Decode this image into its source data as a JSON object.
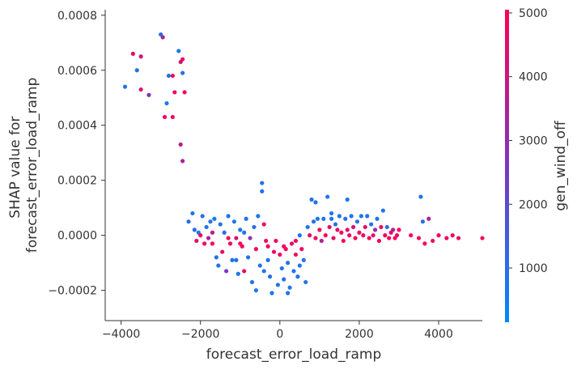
{
  "chart_data": {
    "type": "scatter",
    "title": "",
    "xlabel": "forecast_error_load_ramp",
    "ylabel_lines": [
      "SHAP value for",
      "forecast_error_load_ramp"
    ],
    "xlim": [
      -4400,
      5100
    ],
    "ylim": [
      -0.00031,
      0.00082
    ],
    "x_ticks": [
      -4000,
      -2000,
      0,
      2000,
      4000
    ],
    "x_tick_labels": [
      "−4000",
      "−2000",
      "0",
      "2000",
      "4000"
    ],
    "y_ticks": [
      -0.0002,
      0.0,
      0.0002,
      0.0004,
      0.0006,
      0.0008
    ],
    "y_tick_labels": [
      "−0.0002",
      "0.0000",
      "0.0002",
      "0.0004",
      "0.0006",
      "0.0008"
    ],
    "colorbar": {
      "label": "gen_wind_off",
      "range": [
        150,
        5050
      ],
      "ticks": [
        1000,
        2000,
        3000,
        4000,
        5000
      ],
      "tick_labels": [
        "1000",
        "2000",
        "3000",
        "4000",
        "5000"
      ],
      "colors": [
        "#008afb",
        "#7c36c0",
        "#ff0052"
      ]
    },
    "grid": false,
    "legend": "none",
    "points": [
      [
        -3900,
        0.00054,
        800
      ],
      [
        -3700,
        0.00066,
        4500
      ],
      [
        -3600,
        0.0006,
        900
      ],
      [
        -3500,
        0.00065,
        4200
      ],
      [
        -3500,
        0.00053,
        4400
      ],
      [
        -3300,
        0.00051,
        2800
      ],
      [
        -3000,
        0.00073,
        1000
      ],
      [
        -2950,
        0.00072,
        3500
      ],
      [
        -2850,
        0.00048,
        700
      ],
      [
        -2800,
        0.00058,
        900
      ],
      [
        -2700,
        0.00058,
        4700
      ],
      [
        -2650,
        0.00052,
        4600
      ],
      [
        -2550,
        0.00067,
        700
      ],
      [
        -2500,
        0.00063,
        4000
      ],
      [
        -2450,
        0.00059,
        900
      ],
      [
        -2450,
        0.00064,
        4700
      ],
      [
        -2400,
        0.00052,
        4800
      ],
      [
        -2900,
        0.00043,
        4900
      ],
      [
        -2700,
        0.00043,
        4600
      ],
      [
        -2500,
        0.00033,
        3800
      ],
      [
        -2450,
        0.00027,
        3500
      ],
      [
        -2200,
        8e-05,
        800
      ],
      [
        -2150,
        2e-05,
        900
      ],
      [
        -2100,
        -2e-05,
        4500
      ],
      [
        -2050,
        1e-05,
        700
      ],
      [
        -1950,
        7e-05,
        800
      ],
      [
        -1900,
        -3e-05,
        4700
      ],
      [
        -1850,
        3e-05,
        700
      ],
      [
        -1800,
        -1e-05,
        3500
      ],
      [
        -1750,
        5e-05,
        800
      ],
      [
        -1700,
        -3e-05,
        4900
      ],
      [
        -1650,
        6e-05,
        700
      ],
      [
        -1600,
        -8e-05,
        800
      ],
      [
        -1550,
        -0.00011,
        900
      ],
      [
        -1500,
        4e-05,
        800
      ],
      [
        -1450,
        -6e-05,
        4600
      ],
      [
        -1400,
        1e-05,
        900
      ],
      [
        -1350,
        -0.00013,
        2500
      ],
      [
        -1300,
        7e-05,
        800
      ],
      [
        -1250,
        -3e-05,
        4900
      ],
      [
        -1200,
        -9e-05,
        800
      ],
      [
        -1150,
        5e-05,
        700
      ],
      [
        -1100,
        -1e-05,
        4400
      ],
      [
        -1050,
        -0.00014,
        800
      ],
      [
        -1000,
        2e-05,
        700
      ],
      [
        -950,
        -4e-05,
        4900
      ],
      [
        -900,
        -0.00013,
        4700
      ],
      [
        -850,
        6e-05,
        800
      ],
      [
        -800,
        -8e-05,
        900
      ],
      [
        -750,
        -1e-05,
        2800
      ],
      [
        -700,
        -0.00017,
        800
      ],
      [
        -650,
        3e-05,
        900
      ],
      [
        -600,
        -5e-05,
        4800
      ],
      [
        -550,
        7e-05,
        700
      ],
      [
        -500,
        -0.00011,
        800
      ],
      [
        -450,
        0.00019,
        800
      ],
      [
        -450,
        0.00016,
        900
      ],
      [
        -400,
        4e-05,
        4700
      ],
      [
        -350,
        -2e-05,
        4900
      ],
      [
        -300,
        -9e-05,
        800
      ],
      [
        -250,
        -0.00015,
        900
      ],
      [
        -200,
        -0.00021,
        700
      ],
      [
        -150,
        -6e-05,
        4800
      ],
      [
        -100,
        -2e-05,
        4900
      ],
      [
        -50,
        -0.00018,
        800
      ],
      [
        0,
        -7e-05,
        4700
      ],
      [
        50,
        -0.00012,
        800
      ],
      [
        100,
        -0.00016,
        900
      ],
      [
        150,
        -5e-05,
        4900
      ],
      [
        200,
        -0.0001,
        800
      ],
      [
        250,
        -0.00019,
        700
      ],
      [
        300,
        -3e-05,
        4500
      ],
      [
        350,
        -0.00013,
        800
      ],
      [
        400,
        -7e-05,
        4800
      ],
      [
        450,
        -0.00015,
        900
      ],
      [
        500,
        -0.00011,
        800
      ],
      [
        550,
        -5e-05,
        4800
      ],
      [
        600,
        -9e-05,
        800
      ],
      [
        650,
        -0.00017,
        900
      ],
      [
        -2300,
        5e-05,
        900
      ],
      [
        -1100,
        -9e-05,
        900
      ],
      [
        -400,
        -0.00013,
        800
      ],
      [
        200,
        -0.00021,
        800
      ],
      [
        400,
        -2e-05,
        4900
      ],
      [
        -1300,
        -1e-05,
        4900
      ],
      [
        -900,
        1e-05,
        800
      ],
      [
        -600,
        -0.0002,
        700
      ],
      [
        -300,
        -4e-05,
        4800
      ],
      [
        100,
        -4e-05,
        4800
      ],
      [
        -2000,
        0.0,
        4700
      ],
      [
        -1700,
        1e-05,
        3800
      ],
      [
        -1000,
        -3e-05,
        4900
      ],
      [
        500,
        0.0,
        700
      ],
      [
        700,
        3e-05,
        700
      ],
      [
        750,
        0.0,
        4600
      ],
      [
        800,
        0.00013,
        800
      ],
      [
        850,
        5e-05,
        900
      ],
      [
        900,
        -1e-05,
        4900
      ],
      [
        950,
        6e-05,
        700
      ],
      [
        1000,
        2e-05,
        4800
      ],
      [
        1050,
        -2e-05,
        3500
      ],
      [
        1100,
        6e-05,
        700
      ],
      [
        1150,
        0.0,
        4900
      ],
      [
        1200,
        0.00014,
        800
      ],
      [
        1250,
        3e-05,
        4700
      ],
      [
        1300,
        6e-05,
        800
      ],
      [
        1350,
        -1e-05,
        4600
      ],
      [
        1400,
        4e-05,
        900
      ],
      [
        1450,
        2e-05,
        4500
      ],
      [
        1500,
        7e-05,
        800
      ],
      [
        1550,
        1e-05,
        4900
      ],
      [
        1600,
        -2e-05,
        4800
      ],
      [
        1650,
        6e-05,
        900
      ],
      [
        1700,
        2e-05,
        4700
      ],
      [
        1750,
        0.0,
        4900
      ],
      [
        1800,
        7e-05,
        800
      ],
      [
        1850,
        3e-05,
        4200
      ],
      [
        1900,
        -1e-05,
        4900
      ],
      [
        1950,
        5e-05,
        800
      ],
      [
        2000,
        1e-05,
        4800
      ],
      [
        2050,
        7e-05,
        700
      ],
      [
        2100,
        0.0,
        4900
      ],
      [
        2150,
        3e-05,
        4600
      ],
      [
        2200,
        7e-05,
        800
      ],
      [
        2250,
        -1e-05,
        4800
      ],
      [
        2300,
        4e-05,
        900
      ],
      [
        2350,
        0.0,
        4700
      ],
      [
        2400,
        2e-05,
        3000
      ],
      [
        2450,
        6e-05,
        800
      ],
      [
        2500,
        -2e-05,
        4900
      ],
      [
        2550,
        3e-05,
        4700
      ],
      [
        2600,
        9e-05,
        800
      ],
      [
        2650,
        0.0,
        4800
      ],
      [
        2700,
        3e-05,
        900
      ],
      [
        2750,
        -1e-05,
        4900
      ],
      [
        2800,
        1e-05,
        4500
      ],
      [
        2850,
        2e-05,
        3800
      ],
      [
        2900,
        -1e-05,
        4900
      ],
      [
        2950,
        0.0,
        4600
      ],
      [
        3000,
        2e-05,
        4900
      ],
      [
        1700,
        0.00013,
        700
      ],
      [
        1300,
        8e-05,
        800
      ],
      [
        900,
        0.00012,
        900
      ],
      [
        3300,
        0.0,
        4800
      ],
      [
        3500,
        -1e-05,
        4900
      ],
      [
        3550,
        0.00014,
        800
      ],
      [
        3600,
        5e-05,
        900
      ],
      [
        3650,
        -3e-05,
        4900
      ],
      [
        3750,
        6e-05,
        3500
      ],
      [
        3850,
        -2e-05,
        4700
      ],
      [
        4000,
        0.0,
        4900
      ],
      [
        4200,
        -1e-05,
        4800
      ],
      [
        4350,
        0.0,
        4900
      ],
      [
        4500,
        -1e-05,
        4600
      ],
      [
        5100,
        -1e-05,
        4900
      ]
    ]
  }
}
